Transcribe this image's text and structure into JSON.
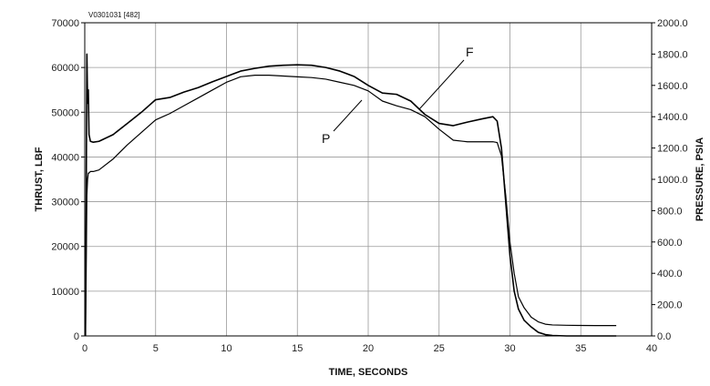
{
  "chart_data": {
    "type": "line",
    "id_label": "V0301031 [482]",
    "xlabel": "TIME, SECONDS",
    "ylabel_left": "THRUST, LBF",
    "ylabel_right": "PRESSURE, PSIA",
    "xlim": [
      0,
      40
    ],
    "ylim_left": [
      0,
      70000
    ],
    "ylim_right": [
      0,
      2000
    ],
    "x_ticks": [
      "0",
      "5",
      "10",
      "15",
      "20",
      "25",
      "30",
      "35",
      "40"
    ],
    "y_left_ticks": [
      "0",
      "10000",
      "20000",
      "30000",
      "40000",
      "50000",
      "60000",
      "70000"
    ],
    "y_right_ticks": [
      "0.0",
      "200.0",
      "400.0",
      "600.0",
      "800.0",
      "1000.0",
      "1200.0",
      "1400.0",
      "1600.0",
      "1800.0",
      "2000.0"
    ],
    "grid": true,
    "series": [
      {
        "name": "F",
        "axis": "left",
        "x": [
          0.05,
          0.1,
          0.15,
          0.2,
          0.25,
          0.3,
          0.4,
          0.6,
          1,
          2,
          3,
          4,
          5,
          6,
          7,
          8,
          9,
          10,
          11,
          12,
          13,
          14,
          15,
          16,
          17,
          18,
          19,
          20,
          21,
          22,
          23,
          24,
          25,
          26,
          27,
          28,
          28.8,
          29.1,
          29.4,
          29.7,
          30,
          30.3,
          30.6,
          31,
          31.5,
          32,
          32.5,
          33,
          34,
          35,
          36,
          37,
          37.5
        ],
        "values": [
          0,
          30000,
          63000,
          52000,
          55000,
          45000,
          43500,
          43300,
          43500,
          45000,
          47500,
          50000,
          52800,
          53300,
          54500,
          55500,
          56800,
          58000,
          59200,
          59800,
          60300,
          60500,
          60600,
          60500,
          60000,
          59200,
          58000,
          56000,
          54300,
          54000,
          52500,
          49500,
          47500,
          47000,
          47800,
          48500,
          49000,
          48000,
          42000,
          30000,
          18000,
          10000,
          6000,
          3500,
          2000,
          800,
          300,
          100,
          0,
          0,
          0,
          0,
          0
        ]
      },
      {
        "name": "P",
        "axis": "right",
        "x": [
          0.05,
          0.1,
          0.15,
          0.2,
          0.25,
          0.3,
          0.4,
          0.6,
          1,
          2,
          3,
          4,
          5,
          6,
          7,
          8,
          9,
          10,
          11,
          12,
          13,
          14,
          15,
          16,
          17,
          18,
          19,
          20,
          21,
          22,
          23,
          24,
          25,
          26,
          27,
          28,
          28.8,
          29.1,
          29.4,
          29.7,
          30,
          30.3,
          30.6,
          31,
          31.5,
          32,
          32.5,
          33,
          34,
          35,
          36,
          37,
          37.5
        ],
        "values": [
          0,
          400,
          900,
          1000,
          1040,
          1040,
          1050,
          1050,
          1060,
          1130,
          1220,
          1300,
          1380,
          1420,
          1470,
          1520,
          1570,
          1620,
          1655,
          1665,
          1665,
          1660,
          1655,
          1650,
          1640,
          1620,
          1600,
          1565,
          1500,
          1470,
          1445,
          1400,
          1320,
          1250,
          1240,
          1240,
          1240,
          1235,
          1150,
          900,
          600,
          400,
          250,
          180,
          120,
          90,
          75,
          70,
          68,
          67,
          66,
          66,
          66
        ]
      }
    ]
  }
}
